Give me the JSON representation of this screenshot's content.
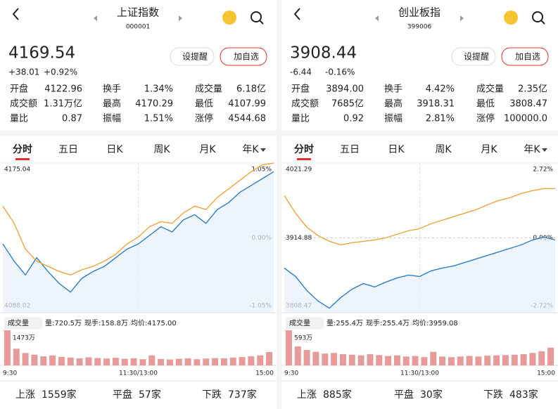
{
  "panels": [
    {
      "header": {
        "title": "上证指数",
        "code": "000001"
      },
      "quote": {
        "price": "4169.54",
        "change": "+38.01",
        "change_pct": "+0.92%",
        "color": "#e0312e"
      },
      "buttons": [
        "设提醒",
        "加自选"
      ],
      "stats": [
        [
          {
            "label": "开盘",
            "value": "4122.96",
            "color": "#1f9e47"
          },
          {
            "label": "换手",
            "value": "1.34%"
          },
          {
            "label": "成交量",
            "value": "6.18亿"
          }
        ],
        [
          {
            "label": "成交额",
            "value": "1.31万亿"
          },
          {
            "label": "最高",
            "value": "4170.29",
            "color": "#e0312e"
          },
          {
            "label": "最低",
            "value": "4107.99",
            "color": "#1f9e47"
          }
        ],
        [
          {
            "label": "量比",
            "value": "0.87"
          },
          {
            "label": "振幅",
            "value": "1.51%"
          },
          {
            "label": "涨停",
            "value": "4544.68",
            "color": "#e0312e"
          }
        ]
      ],
      "tabs": [
        "分时",
        "五日",
        "日K",
        "周K",
        "月K",
        "年K"
      ],
      "chart": {
        "type": "line",
        "ylim": [
          4088.02,
          4175.04
        ],
        "yticks": [
          4088.02,
          4175.04
        ],
        "y2lim": [
          -1.05,
          1.05
        ],
        "y2ticks": [
          {
            "value": -1.05,
            "label": "-1.05%"
          },
          {
            "value": 0,
            "label": "0.00%"
          },
          {
            "value": 1.05,
            "label": "1.05%"
          }
        ],
        "series": [
          {
            "color": "#2c7fc4",
            "values": [
              4128,
              4118,
              4110,
              4120,
              4112,
              4105,
              4100,
              4108,
              4112,
              4115,
              4120,
              4125,
              4128,
              4133,
              4138,
              4135,
              4142,
              4145,
              4140,
              4148,
              4152,
              4158,
              4162,
              4166,
              4170
            ]
          },
          {
            "color": "#f0a33a",
            "values": [
              4150,
              4140,
              4125,
              4118,
              4115,
              4112,
              4110,
              4113,
              4115,
              4118,
              4122,
              4128,
              4132,
              4138,
              4141,
              4140,
              4146,
              4150,
              4148,
              4155,
              4160,
              4165,
              4170,
              4174,
              4175
            ]
          }
        ]
      },
      "volume": {
        "label": "成交量",
        "info": [
          "量:720.5万",
          "现手:158.8万",
          "均价:4175.00"
        ],
        "ylim": [
          0,
          1473
        ],
        "yticks": [
          {
            "value": 1473,
            "label": "1473万"
          }
        ],
        "color": "#e79a9a",
        "values": [
          1473,
          700,
          520,
          450,
          380,
          420,
          360,
          330,
          300,
          340,
          310,
          290,
          320,
          280,
          300,
          260,
          420,
          270,
          250,
          280,
          300,
          260,
          290,
          310,
          300,
          330,
          350,
          380,
          420,
          560
        ],
        "times": [
          "9:30",
          "11:30/13:00",
          "15:00"
        ]
      },
      "footer": [
        {
          "label": "上涨",
          "count": "1559家",
          "color": "#e0312e"
        },
        {
          "label": "平盘",
          "count": "57家",
          "color": "#a0a0a0"
        },
        {
          "label": "下跌",
          "count": "737家",
          "color": "#1f9e47"
        }
      ]
    },
    {
      "header": {
        "title": "创业板指",
        "code": "399006"
      },
      "quote": {
        "price": "3908.44",
        "change": "-6.44",
        "change_pct": "-0.16%",
        "color": "#1f9e47"
      },
      "buttons": [
        "设提醒",
        "加自选"
      ],
      "stats": [
        [
          {
            "label": "开盘",
            "value": "3894.00",
            "color": "#1f9e47"
          },
          {
            "label": "换手",
            "value": "4.42%"
          },
          {
            "label": "成交量",
            "value": "2.35亿"
          }
        ],
        [
          {
            "label": "成交额",
            "value": "7685亿"
          },
          {
            "label": "最高",
            "value": "3918.31",
            "color": "#e0312e"
          },
          {
            "label": "最低",
            "value": "3808.47",
            "color": "#1f9e47"
          }
        ],
        [
          {
            "label": "量比",
            "value": "0.92"
          },
          {
            "label": "振幅",
            "value": "2.81%"
          },
          {
            "label": "涨停",
            "value": "100000.0",
            "color": "#e0312e"
          }
        ]
      ],
      "tabs": [
        "分时",
        "五日",
        "日K",
        "周K",
        "月K",
        "年K"
      ],
      "chart": {
        "type": "line",
        "ylim": [
          3808.47,
          4021.29
        ],
        "yticks": [
          3808.47,
          3914.88,
          4021.29
        ],
        "y2lim": [
          -2.72,
          2.72
        ],
        "y2ticks": [
          {
            "value": -2.72,
            "label": "-2.72%"
          },
          {
            "value": 0,
            "label": "0.00%"
          },
          {
            "value": 2.72,
            "label": "2.72%"
          }
        ],
        "series": [
          {
            "color": "#2c7fc4",
            "values": [
              3872,
              3860,
              3840,
              3825,
              3815,
              3830,
              3842,
              3850,
              3845,
              3852,
              3858,
              3862,
              3860,
              3868,
              3872,
              3875,
              3880,
              3885,
              3890,
              3895,
              3900,
              3905,
              3912,
              3916,
              3912
            ]
          },
          {
            "color": "#f0a33a",
            "values": [
              3975,
              3950,
              3930,
              3918,
              3910,
              3905,
              3908,
              3910,
              3912,
              3915,
              3920,
              3925,
              3928,
              3935,
              3940,
              3945,
              3950,
              3955,
              3962,
              3968,
              3972,
              3978,
              3982,
              3985,
              3985
            ]
          }
        ]
      },
      "volume": {
        "label": "成交量",
        "info": [
          "量:255.4万",
          "现手:255.4万",
          "均价:3959.08"
        ],
        "ylim": [
          0,
          593
        ],
        "yticks": [
          {
            "value": 593,
            "label": "593万"
          }
        ],
        "color": "#e79a9a",
        "values": [
          593,
          320,
          260,
          230,
          200,
          210,
          190,
          180,
          170,
          190,
          175,
          160,
          170,
          150,
          160,
          140,
          230,
          150,
          140,
          150,
          160,
          150,
          165,
          170,
          175,
          180,
          190,
          210,
          240,
          300
        ],
        "times": [
          "9:30",
          "11:30/13:00",
          "15:00"
        ]
      },
      "footer": [
        {
          "label": "上涨",
          "count": "885家",
          "color": "#e0312e"
        },
        {
          "label": "平盘",
          "count": "30家",
          "color": "#a0a0a0"
        },
        {
          "label": "下跌",
          "count": "483家",
          "color": "#1f9e47"
        }
      ]
    }
  ]
}
